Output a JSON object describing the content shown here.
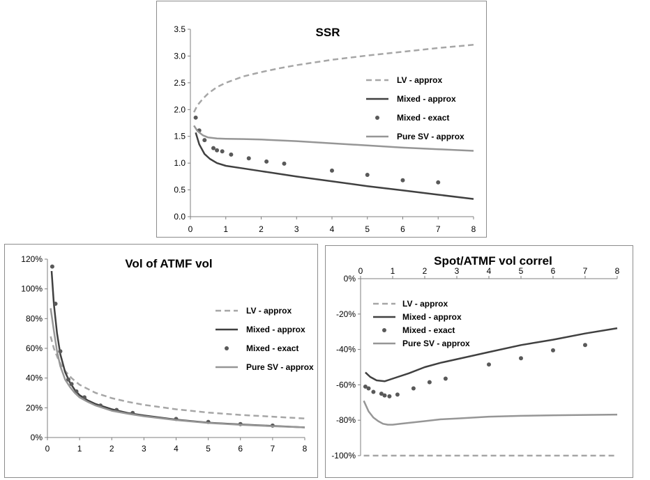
{
  "colors": {
    "lv": "#a6a6a6",
    "mixed": "#404040",
    "exact": "#595959",
    "pure": "#969696",
    "axis": "#7f7f7f"
  },
  "chart_data": [
    {
      "type": "line",
      "title": "SSR",
      "xlabel": "",
      "ylabel": "",
      "xlim": [
        0,
        8
      ],
      "ylim": [
        0,
        3.5
      ],
      "xticks": [
        0,
        1,
        2,
        3,
        4,
        5,
        6,
        7,
        8
      ],
      "yticks": [
        0,
        0.5,
        1,
        1.5,
        2,
        2.5,
        3,
        3.5
      ],
      "ytick_labels": [
        "0.0",
        "0.5",
        "1.0",
        "1.5",
        "2.0",
        "2.5",
        "3.0",
        "3.5"
      ],
      "grid": false,
      "legend_position": "right",
      "series": [
        {
          "name": "LV - approx",
          "style": "dashed",
          "x": [
            0.1,
            0.2,
            0.35,
            0.5,
            0.75,
            1,
            1.5,
            2,
            2.5,
            3,
            4,
            5,
            6,
            7,
            8
          ],
          "y": [
            1.95,
            2.08,
            2.2,
            2.3,
            2.42,
            2.5,
            2.62,
            2.7,
            2.77,
            2.83,
            2.93,
            3.01,
            3.08,
            3.15,
            3.21
          ]
        },
        {
          "name": "Mixed - approx",
          "style": "solid",
          "x": [
            0.15,
            0.25,
            0.4,
            0.55,
            0.75,
            1,
            1.5,
            2,
            2.5,
            3,
            4,
            5,
            6,
            7,
            8
          ],
          "y": [
            1.57,
            1.35,
            1.17,
            1.08,
            1.0,
            0.95,
            0.9,
            0.85,
            0.8,
            0.75,
            0.66,
            0.57,
            0.49,
            0.41,
            0.33
          ]
        },
        {
          "name": "Mixed - exact",
          "style": "markers",
          "x": [
            0.15,
            0.25,
            0.4,
            0.65,
            0.75,
            0.9,
            1.15,
            1.65,
            2.15,
            2.65,
            4,
            5,
            6,
            7
          ],
          "y": [
            1.85,
            1.61,
            1.43,
            1.28,
            1.24,
            1.22,
            1.16,
            1.09,
            1.03,
            0.99,
            0.86,
            0.78,
            0.68,
            0.64
          ]
        },
        {
          "name": "Pure SV - approx",
          "style": "solid",
          "x": [
            0.1,
            0.2,
            0.35,
            0.5,
            0.75,
            1,
            1.5,
            2,
            3,
            4,
            5,
            6,
            7,
            8
          ],
          "y": [
            1.7,
            1.6,
            1.52,
            1.48,
            1.46,
            1.455,
            1.45,
            1.44,
            1.41,
            1.37,
            1.33,
            1.29,
            1.26,
            1.23
          ]
        }
      ]
    },
    {
      "type": "line",
      "title": "Vol of ATMF vol",
      "xlabel": "",
      "ylabel": "",
      "xlim": [
        0,
        8
      ],
      "ylim": [
        0,
        1.2
      ],
      "xticks": [
        0,
        1,
        2,
        3,
        4,
        5,
        6,
        7,
        8
      ],
      "yticks": [
        0,
        0.2,
        0.4,
        0.6,
        0.8,
        1.0,
        1.2
      ],
      "ytick_labels": [
        "0%",
        "20%",
        "40%",
        "60%",
        "80%",
        "100%",
        "120%"
      ],
      "grid": false,
      "legend_position": "right",
      "series": [
        {
          "name": "LV - approx",
          "style": "dashed",
          "x": [
            0.1,
            0.2,
            0.35,
            0.5,
            0.75,
            1,
            1.5,
            2,
            2.5,
            3,
            4,
            5,
            6,
            7,
            8
          ],
          "y": [
            0.68,
            0.6,
            0.52,
            0.46,
            0.4,
            0.355,
            0.3,
            0.265,
            0.24,
            0.22,
            0.19,
            0.168,
            0.152,
            0.14,
            0.128
          ]
        },
        {
          "name": "Mixed - approx",
          "style": "solid",
          "x": [
            0.13,
            0.2,
            0.3,
            0.4,
            0.55,
            0.7,
            0.85,
            1,
            1.25,
            1.5,
            2,
            2.5,
            3,
            4,
            5,
            6,
            7,
            8
          ],
          "y": [
            1.12,
            0.9,
            0.7,
            0.56,
            0.44,
            0.37,
            0.32,
            0.285,
            0.25,
            0.225,
            0.19,
            0.165,
            0.148,
            0.12,
            0.1,
            0.088,
            0.078,
            0.068
          ]
        },
        {
          "name": "Mixed - exact",
          "style": "markers",
          "x": [
            0.15,
            0.25,
            0.4,
            0.65,
            0.75,
            0.9,
            1.15,
            1.65,
            2.15,
            2.65,
            4,
            5,
            6,
            7
          ],
          "y": [
            1.15,
            0.9,
            0.58,
            0.39,
            0.36,
            0.31,
            0.27,
            0.215,
            0.185,
            0.165,
            0.125,
            0.105,
            0.09,
            0.08
          ]
        },
        {
          "name": "Pure SV - approx",
          "style": "solid",
          "x": [
            0.1,
            0.2,
            0.3,
            0.4,
            0.55,
            0.7,
            0.85,
            1,
            1.25,
            1.5,
            2,
            2.5,
            3,
            4,
            5,
            6,
            7,
            8
          ],
          "y": [
            0.87,
            0.72,
            0.58,
            0.48,
            0.39,
            0.34,
            0.3,
            0.27,
            0.24,
            0.215,
            0.18,
            0.16,
            0.143,
            0.117,
            0.098,
            0.086,
            0.076,
            0.068
          ]
        }
      ]
    },
    {
      "type": "line",
      "title": "Spot/ATMF vol correl",
      "xlabel": "",
      "ylabel": "",
      "xlim": [
        0,
        8
      ],
      "ylim": [
        -1,
        0
      ],
      "xticks": [
        0,
        1,
        2,
        3,
        4,
        5,
        6,
        7,
        8
      ],
      "yticks": [
        -1,
        -0.8,
        -0.6,
        -0.4,
        -0.2,
        0
      ],
      "ytick_labels": [
        "-100%",
        "-80%",
        "-60%",
        "-40%",
        "-20%",
        "0%"
      ],
      "grid": false,
      "legend_position": "top-left",
      "series": [
        {
          "name": "LV - approx",
          "style": "dashed",
          "x": [
            0.1,
            8
          ],
          "y": [
            -1.0,
            -1.0
          ]
        },
        {
          "name": "Mixed - approx",
          "style": "solid",
          "x": [
            0.15,
            0.3,
            0.5,
            0.75,
            1,
            1.5,
            2,
            2.5,
            3,
            4,
            5,
            6,
            7,
            8
          ],
          "y": [
            -0.53,
            -0.555,
            -0.575,
            -0.58,
            -0.565,
            -0.535,
            -0.5,
            -0.475,
            -0.455,
            -0.415,
            -0.375,
            -0.345,
            -0.31,
            -0.28
          ]
        },
        {
          "name": "Mixed - exact",
          "style": "markers",
          "x": [
            0.15,
            0.25,
            0.4,
            0.65,
            0.75,
            0.9,
            1.15,
            1.65,
            2.15,
            2.65,
            4,
            5,
            6,
            7
          ],
          "y": [
            -0.61,
            -0.62,
            -0.64,
            -0.65,
            -0.66,
            -0.665,
            -0.655,
            -0.62,
            -0.585,
            -0.565,
            -0.485,
            -0.45,
            -0.405,
            -0.375
          ]
        },
        {
          "name": "Pure SV - approx",
          "style": "solid",
          "x": [
            0.1,
            0.25,
            0.4,
            0.55,
            0.7,
            0.85,
            1,
            1.25,
            1.5,
            2,
            2.5,
            3,
            4,
            5,
            6,
            7,
            8
          ],
          "y": [
            -0.69,
            -0.75,
            -0.785,
            -0.805,
            -0.82,
            -0.825,
            -0.825,
            -0.82,
            -0.815,
            -0.805,
            -0.795,
            -0.79,
            -0.78,
            -0.775,
            -0.772,
            -0.77,
            -0.768
          ]
        }
      ]
    }
  ]
}
